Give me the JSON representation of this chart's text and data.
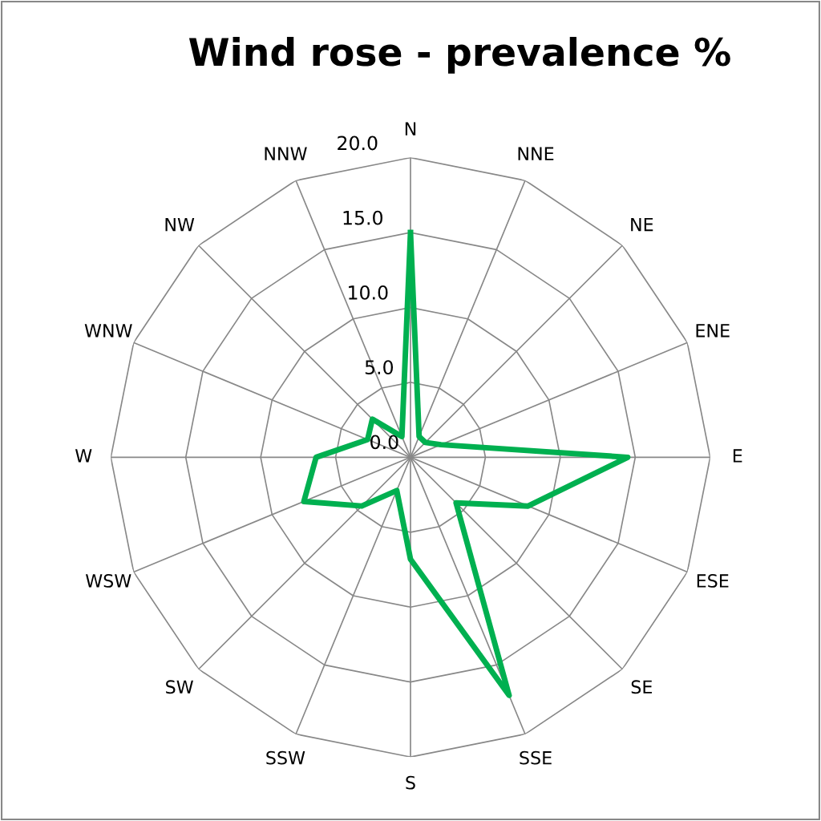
{
  "chart_data": {
    "type": "radar",
    "title": "Wind rose - prevalence %",
    "categories": [
      "N",
      "NNE",
      "NE",
      "ENE",
      "E",
      "ESE",
      "SE",
      "SSE",
      "S",
      "SSW",
      "SW",
      "WSW",
      "W",
      "WNW",
      "NW",
      "NNW"
    ],
    "series": [
      {
        "color": "#00b050",
        "values": [
          15.0,
          1.5,
          1.4,
          2.2,
          14.5,
          8.5,
          4.3,
          17.2,
          6.8,
          2.4,
          4.6,
          7.7,
          6.3,
          3.1,
          3.6,
          1.5
        ]
      }
    ],
    "ylim": [
      0,
      20
    ],
    "yticks": [
      {
        "value": 0,
        "label": "0.0"
      },
      {
        "value": 5,
        "label": "5.0"
      },
      {
        "value": 10,
        "label": "10.0"
      },
      {
        "value": 15,
        "label": "15.0"
      },
      {
        "value": 20,
        "label": "20.0"
      }
    ],
    "grid": true,
    "marker": "none",
    "line_style": "solid"
  }
}
